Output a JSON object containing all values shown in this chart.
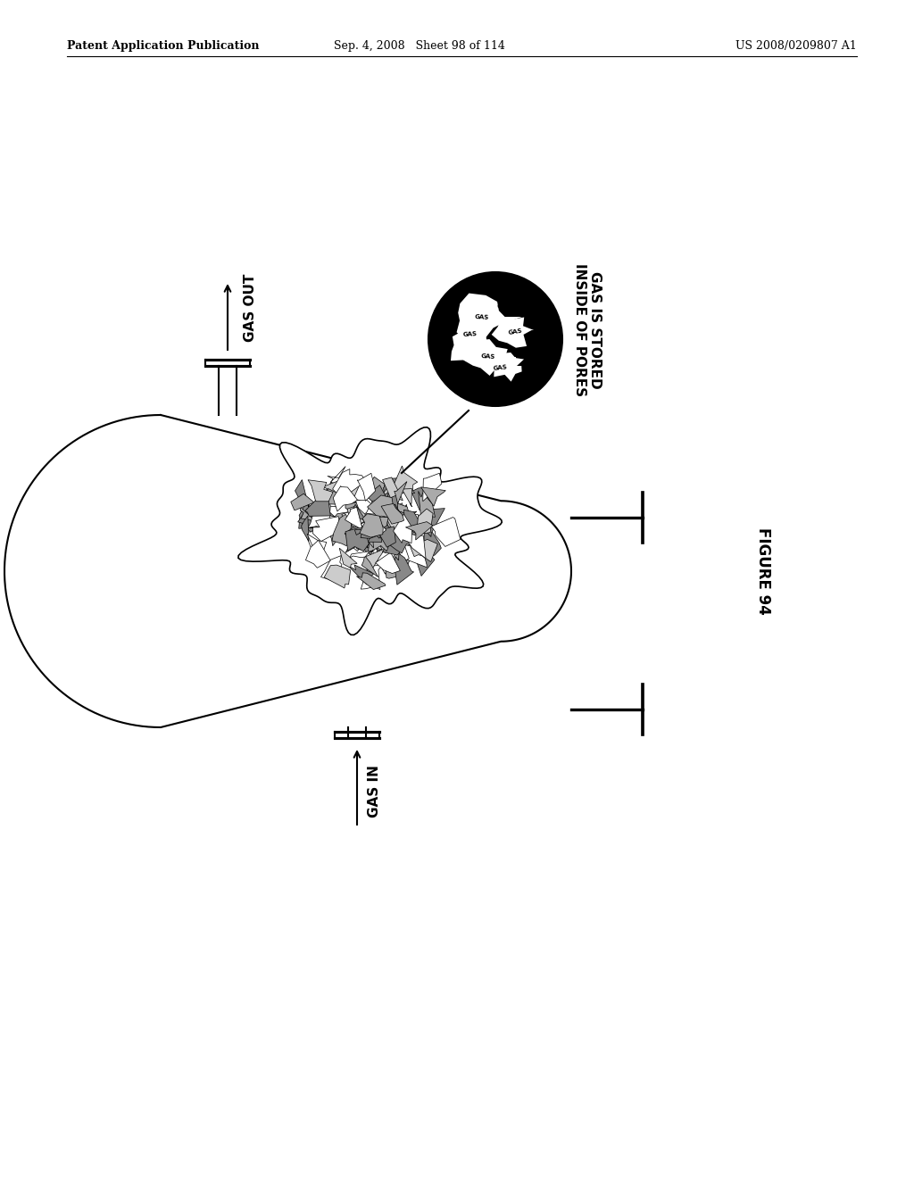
{
  "bg_color": "#ffffff",
  "header_left": "Patent Application Publication",
  "header_mid": "Sep. 4, 2008   Sheet 98 of 114",
  "header_right": "US 2008/0209807 A1",
  "figure_label": "FIGURE 94",
  "label_gas_out": "GAS OUT",
  "label_gas_in": "GAS IN",
  "label_pores": "GAS IS STORED\nINSIDE OF PORES",
  "line_color": "#000000",
  "lw": 1.5
}
